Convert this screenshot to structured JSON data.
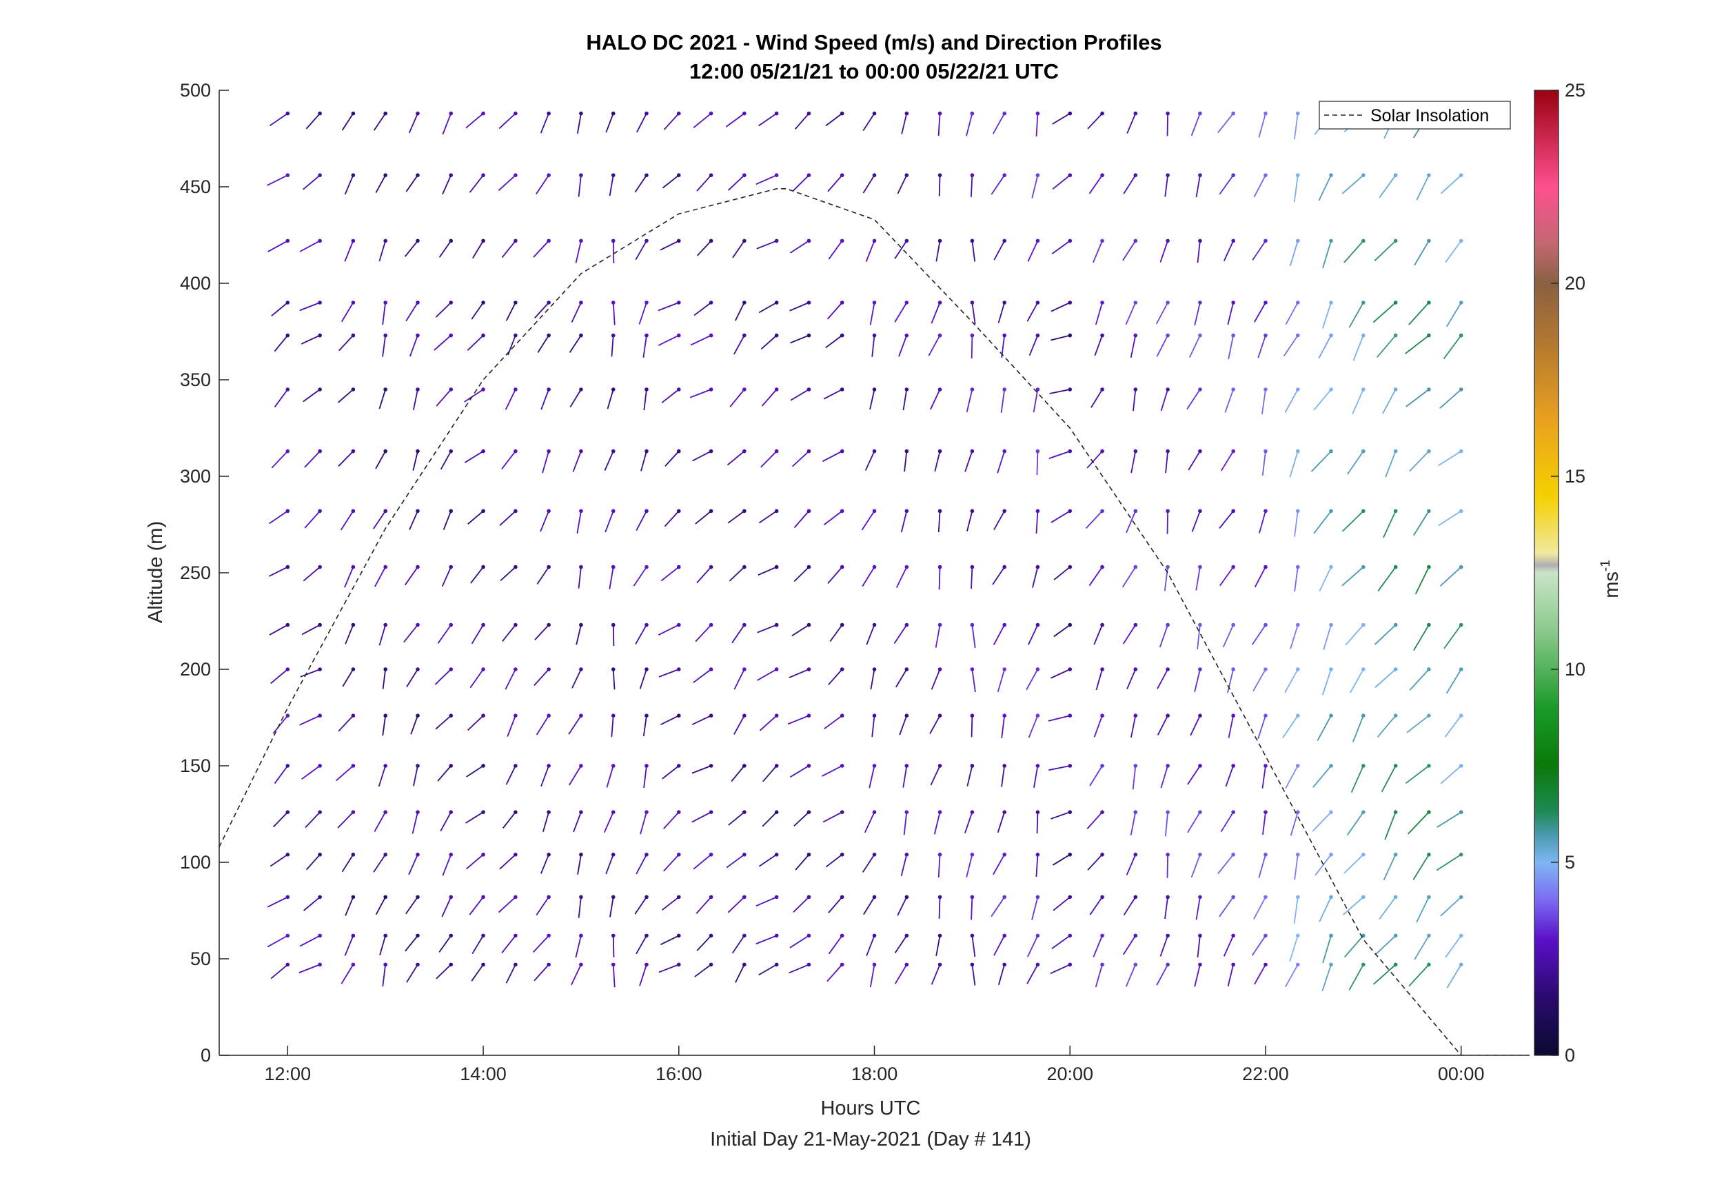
{
  "chart_data": {
    "type": "wind-barb-profile",
    "title": "HALO DC 2021 - Wind Speed (m/s) and Direction Profiles",
    "subtitle": "12:00 05/21/21 to 00:00 05/22/21  UTC",
    "xlabel": "Hours UTC",
    "xlabel2": "Initial Day 21-May-2021 (Day # 141)",
    "ylabel": "Altitude (m)",
    "xlim_hours": [
      11.3,
      24.7
    ],
    "ylim": [
      0,
      500
    ],
    "x_ticks": [
      {
        "value": 12,
        "label": "12:00"
      },
      {
        "value": 14,
        "label": "14:00"
      },
      {
        "value": 16,
        "label": "16:00"
      },
      {
        "value": 18,
        "label": "18:00"
      },
      {
        "value": 20,
        "label": "20:00"
      },
      {
        "value": 22,
        "label": "22:00"
      },
      {
        "value": 24,
        "label": "00:00"
      }
    ],
    "y_ticks": [
      {
        "value": 0,
        "label": "0"
      },
      {
        "value": 50,
        "label": "50"
      },
      {
        "value": 100,
        "label": "100"
      },
      {
        "value": 150,
        "label": "150"
      },
      {
        "value": 200,
        "label": "200"
      },
      {
        "value": 250,
        "label": "250"
      },
      {
        "value": 300,
        "label": "300"
      },
      {
        "value": 350,
        "label": "350"
      },
      {
        "value": 400,
        "label": "400"
      },
      {
        "value": 450,
        "label": "450"
      },
      {
        "value": 500,
        "label": "500"
      }
    ],
    "colorbar": {
      "label": "ms",
      "label_superscript": "-1",
      "range": [
        0,
        25
      ],
      "ticks": [
        {
          "value": 0,
          "label": "0"
        },
        {
          "value": 5,
          "label": "5"
        },
        {
          "value": 10,
          "label": "10"
        },
        {
          "value": 15,
          "label": "15"
        },
        {
          "value": 20,
          "label": "20"
        },
        {
          "value": 25,
          "label": "25"
        }
      ],
      "colors": [
        {
          "v": 0,
          "c": "#0a0a30"
        },
        {
          "v": 1.5,
          "c": "#2a0a6e"
        },
        {
          "v": 3,
          "c": "#5a10c8"
        },
        {
          "v": 4,
          "c": "#7a6af0"
        },
        {
          "v": 5,
          "c": "#7fb6f5"
        },
        {
          "v": 5.7,
          "c": "#4a9ab0"
        },
        {
          "v": 6.3,
          "c": "#1f8a55"
        },
        {
          "v": 7.5,
          "c": "#0a7a0a"
        },
        {
          "v": 9,
          "c": "#1a9a2a"
        },
        {
          "v": 11,
          "c": "#8cc98c"
        },
        {
          "v": 12.5,
          "c": "#c8e4c8"
        },
        {
          "v": 12.7,
          "c": "#b0b0b0"
        },
        {
          "v": 13,
          "c": "#f0e8a0"
        },
        {
          "v": 14.5,
          "c": "#f5d000"
        },
        {
          "v": 16.5,
          "c": "#e8a020"
        },
        {
          "v": 18.5,
          "c": "#b07830"
        },
        {
          "v": 20,
          "c": "#8a6040"
        },
        {
          "v": 21,
          "c": "#c06870"
        },
        {
          "v": 22.5,
          "c": "#ff5090"
        },
        {
          "v": 25,
          "c": "#9a0010"
        }
      ]
    },
    "legend": {
      "entries": [
        "Solar Insolation"
      ],
      "position": "top-right"
    },
    "series": [
      {
        "name": "Solar Insolation",
        "style": "dashed",
        "color": "#222222",
        "x": [
          11.3,
          12.0,
          13.0,
          14.0,
          15.0,
          16.0,
          17.0,
          17.1,
          18.0,
          19.0,
          20.0,
          21.0,
          22.0,
          23.0,
          24.0,
          24.7
        ],
        "y": [
          108,
          180,
          273,
          350,
          405,
          436,
          449,
          449,
          433,
          380,
          325,
          250,
          155,
          60,
          0,
          0
        ]
      }
    ],
    "wind_profiles": {
      "altitudes_m": [
        47,
        62,
        82,
        104,
        126,
        150,
        176,
        200,
        223,
        253,
        282,
        313,
        345,
        373,
        390,
        422,
        456,
        488
      ],
      "times_hours": [
        12.0,
        12.33,
        12.67,
        13.0,
        13.33,
        13.67,
        14.0,
        14.33,
        14.67,
        15.0,
        15.33,
        15.67,
        16.0,
        16.33,
        16.67,
        17.0,
        17.33,
        17.67,
        18.0,
        18.33,
        18.67,
        19.0,
        19.33,
        19.67,
        20.0,
        20.33,
        20.67,
        21.0,
        21.33,
        21.67,
        22.0,
        22.33,
        22.67,
        23.0,
        23.33,
        23.67,
        24.0
      ],
      "mean_direction_by_time_deg": [
        230,
        235,
        215,
        200,
        205,
        215,
        225,
        215,
        210,
        200,
        190,
        200,
        235,
        235,
        220,
        235,
        235,
        230,
        200,
        200,
        195,
        185,
        200,
        195,
        245,
        210,
        200,
        195,
        200,
        205,
        200,
        200,
        210,
        215,
        215,
        220,
        225
      ],
      "mean_speed_by_time_ms": [
        2.5,
        2.4,
        2.3,
        2.2,
        2.2,
        2.3,
        2.3,
        2.4,
        2.4,
        2.4,
        2.4,
        2.5,
        2.4,
        2.4,
        2.3,
        2.3,
        2.3,
        2.4,
        2.5,
        2.5,
        2.6,
        2.7,
        2.8,
        2.9,
        2.2,
        2.8,
        3.0,
        3.1,
        3.2,
        3.3,
        3.5,
        4.5,
        5.2,
        5.5,
        5.8,
        6.0,
        5.5
      ]
    }
  }
}
